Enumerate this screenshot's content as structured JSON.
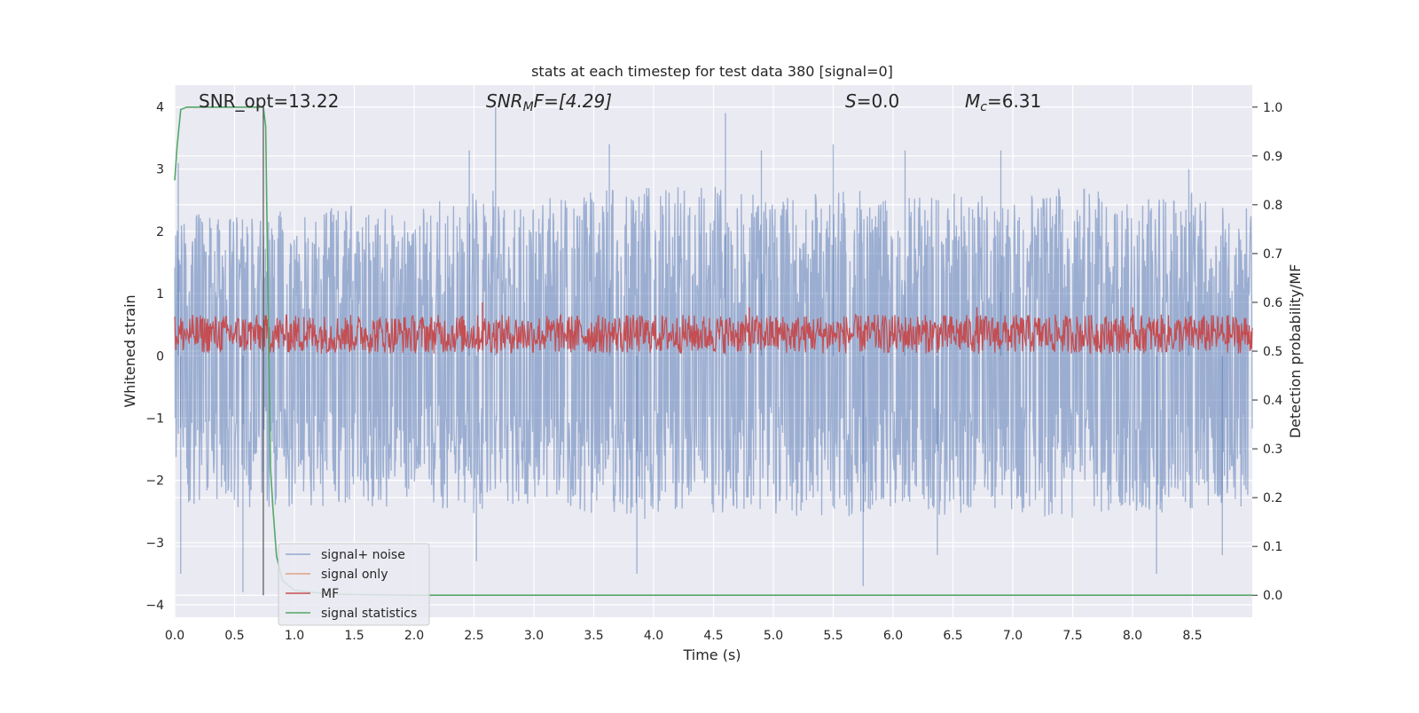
{
  "chart_data": {
    "type": "line",
    "title": "stats at each timestep for test data 380 [signal=0]",
    "xlabel": "Time (s)",
    "ylabel": "Whitened strain",
    "y2label": "Detection probability/MF",
    "xlim": [
      0.0,
      9.0
    ],
    "ylim": [
      -4.2,
      4.35
    ],
    "y2lim": [
      -0.045,
      1.045
    ],
    "xticks": [
      "0.0",
      "0.5",
      "1.0",
      "1.5",
      "2.0",
      "2.5",
      "3.0",
      "3.5",
      "4.0",
      "4.5",
      "5.0",
      "5.5",
      "6.0",
      "6.5",
      "7.0",
      "7.5",
      "8.0",
      "8.5"
    ],
    "yticks": [
      "4",
      "3",
      "2",
      "1",
      "0",
      "−1",
      "−2",
      "−3",
      "−4"
    ],
    "y2ticks": [
      "1.0",
      "0.9",
      "0.8",
      "0.7",
      "0.6",
      "0.5",
      "0.4",
      "0.3",
      "0.2",
      "0.1",
      "0.0"
    ],
    "grid": true,
    "legend_position": "lower-left",
    "annotations": [
      {
        "key": "snr_opt",
        "text": "SNR_opt=13.22"
      },
      {
        "key": "snr_mf",
        "base": "SNR",
        "sub": "M",
        "rest": "F=[4.29]"
      },
      {
        "key": "s",
        "base": "S",
        "rest": "=0.0"
      },
      {
        "key": "mc",
        "base": "M",
        "sub": "c",
        "rest": "=6.31"
      }
    ],
    "series": [
      {
        "name": "signal+ noise",
        "axis": "left",
        "color": "#4c72b0",
        "kind": "noise",
        "envelope_upper": [
          [
            0.0,
            2.0
          ],
          [
            0.5,
            2.2
          ],
          [
            1.0,
            2.1
          ],
          [
            1.5,
            2.2
          ],
          [
            2.0,
            2.1
          ],
          [
            2.5,
            2.5
          ],
          [
            3.0,
            2.3
          ],
          [
            3.5,
            2.4
          ],
          [
            4.0,
            2.5
          ],
          [
            4.5,
            2.5
          ],
          [
            5.0,
            2.3
          ],
          [
            5.5,
            2.5
          ],
          [
            6.0,
            2.3
          ],
          [
            6.5,
            2.4
          ],
          [
            7.0,
            2.3
          ],
          [
            7.5,
            2.5
          ],
          [
            8.0,
            2.3
          ],
          [
            8.5,
            2.4
          ],
          [
            9.0,
            2.2
          ]
        ],
        "envelope_lower": [
          [
            0.0,
            -2.1
          ],
          [
            0.5,
            -2.3
          ],
          [
            1.0,
            -2.2
          ],
          [
            1.5,
            -2.2
          ],
          [
            2.0,
            -2.2
          ],
          [
            2.5,
            -2.3
          ],
          [
            3.0,
            -2.2
          ],
          [
            3.5,
            -2.3
          ],
          [
            4.0,
            -2.4
          ],
          [
            4.5,
            -2.3
          ],
          [
            5.0,
            -2.3
          ],
          [
            5.5,
            -2.4
          ],
          [
            6.0,
            -2.3
          ],
          [
            6.5,
            -2.4
          ],
          [
            7.0,
            -2.3
          ],
          [
            7.5,
            -2.4
          ],
          [
            8.0,
            -2.3
          ],
          [
            8.5,
            -2.3
          ],
          [
            9.0,
            -2.2
          ]
        ],
        "peaks": [
          [
            0.03,
            3.1
          ],
          [
            0.05,
            -3.5
          ],
          [
            0.57,
            -3.8
          ],
          [
            2.46,
            3.3
          ],
          [
            2.52,
            -3.3
          ],
          [
            2.68,
            4.0
          ],
          [
            3.63,
            3.4
          ],
          [
            3.86,
            -3.5
          ],
          [
            4.6,
            3.9
          ],
          [
            4.9,
            3.3
          ],
          [
            5.5,
            3.4
          ],
          [
            5.75,
            -3.7
          ],
          [
            6.1,
            3.3
          ],
          [
            6.37,
            -3.2
          ],
          [
            6.9,
            3.3
          ],
          [
            8.2,
            -3.5
          ],
          [
            8.47,
            3.0
          ],
          [
            8.75,
            -3.2
          ]
        ]
      },
      {
        "name": "signal only",
        "axis": "left",
        "color": "#dd8452",
        "values": []
      },
      {
        "name": "MF",
        "axis": "right",
        "color": "#c44e52",
        "kind": "noise",
        "baseline": 0.535,
        "spread": 0.04,
        "range": [
          0.49,
          0.6
        ],
        "peaks": [
          [
            2.57,
            0.6
          ],
          [
            4.8,
            0.59
          ],
          [
            6.7,
            0.59
          ],
          [
            8.0,
            0.59
          ],
          [
            0.15,
            0.57
          ],
          [
            1.08,
            0.57
          ]
        ]
      },
      {
        "name": "signal statistics",
        "axis": "right",
        "color": "#55a868",
        "x": [
          0.0,
          0.02,
          0.05,
          0.1,
          0.2,
          0.4,
          0.7,
          0.74,
          0.76,
          0.78,
          0.8,
          0.82,
          0.85,
          0.9,
          1.0,
          1.3,
          2.0,
          3.0,
          4.0,
          5.0,
          6.0,
          7.0,
          8.0,
          9.0
        ],
        "y": [
          0.85,
          0.92,
          0.995,
          1.0,
          1.0,
          1.0,
          1.0,
          1.0,
          0.96,
          0.6,
          0.26,
          0.18,
          0.08,
          0.03,
          0.01,
          0.002,
          0.0,
          0.0,
          0.0,
          0.0,
          0.0,
          0.0,
          0.0,
          0.0
        ]
      }
    ],
    "marker": {
      "axis": "right",
      "x": 0.74,
      "y_from": 0.0,
      "y_to": 1.0,
      "color": "#555555"
    }
  }
}
